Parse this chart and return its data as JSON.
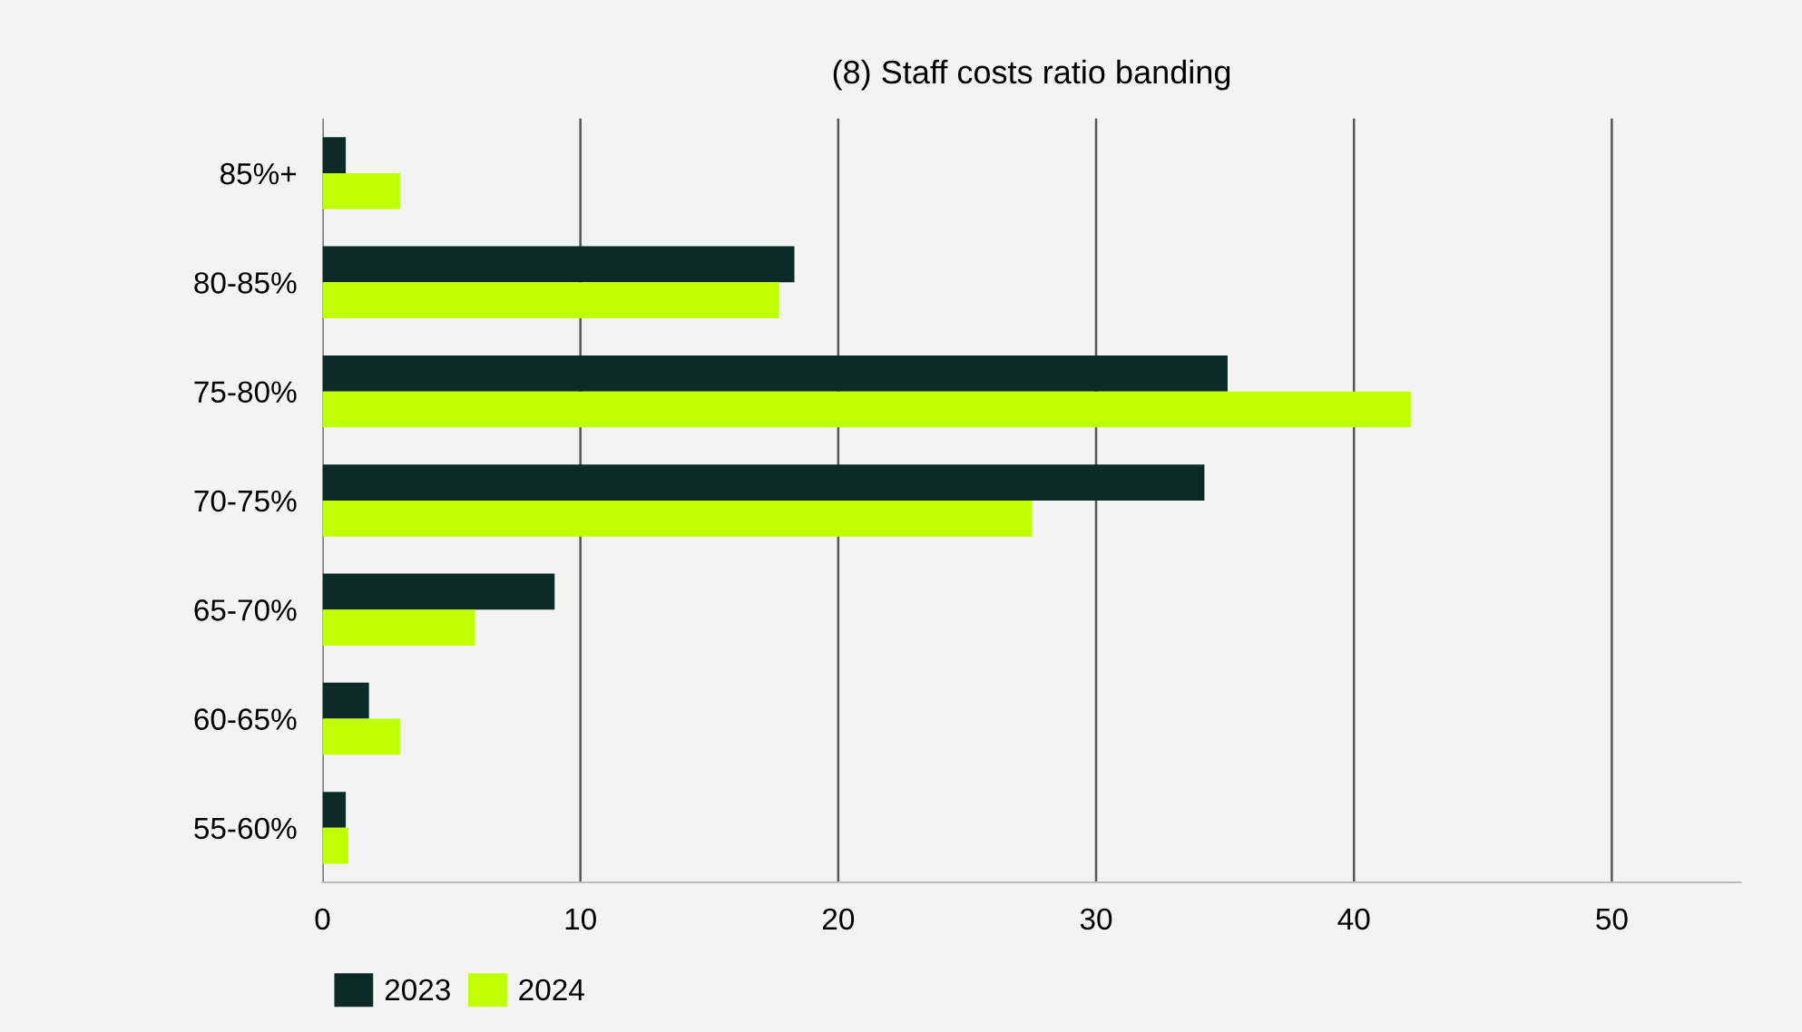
{
  "chart_data": {
    "type": "bar",
    "orientation": "horizontal",
    "title": "(8) Staff costs ratio banding",
    "categories": [
      "85%+",
      "80-85%",
      "75-80%",
      "70-75%",
      "65-70%",
      "60-65%",
      "55-60%"
    ],
    "series": [
      {
        "name": "2023",
        "color": "#0c2a26",
        "values": [
          0.9,
          18.3,
          35.1,
          34.2,
          9.0,
          1.8,
          0.9
        ]
      },
      {
        "name": "2024",
        "color": "#bfff00",
        "values": [
          3.0,
          17.7,
          42.2,
          27.5,
          5.9,
          3.0,
          1.0
        ]
      }
    ],
    "xlim": [
      0,
      55
    ],
    "xticks": [
      0,
      10,
      20,
      30,
      40,
      50
    ],
    "grid": "x",
    "legend": "bottom left"
  }
}
